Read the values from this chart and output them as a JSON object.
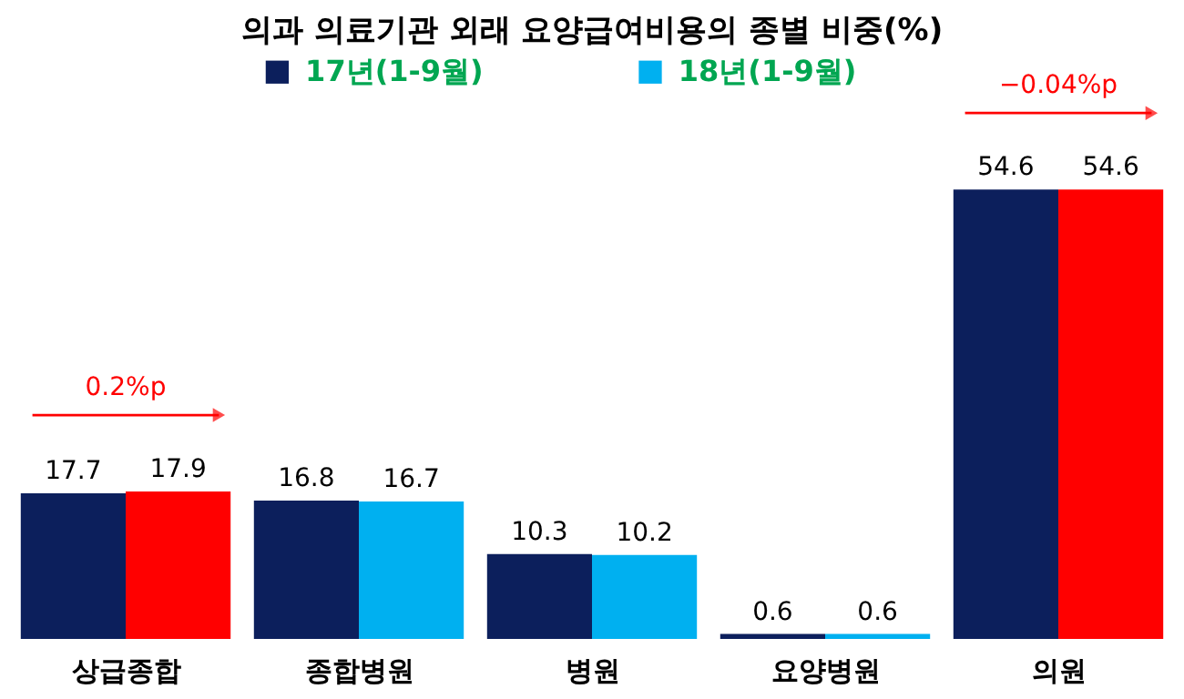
{
  "chart_data": {
    "type": "bar",
    "title": "의과 의료기관 외래 요양급여비용의 종별 비중(%)",
    "categories": [
      "상급종합",
      "종합병원",
      "병원",
      "요양병원",
      "의원"
    ],
    "series": [
      {
        "name": "17년(1-9월)",
        "color": "#0c1f5c",
        "values": [
          17.7,
          16.8,
          10.3,
          0.6,
          54.6
        ]
      },
      {
        "name": "18년(1-9월)",
        "color": "#00b0f0",
        "colors": [
          "#ff0000",
          "#00b0f0",
          "#00b0f0",
          "#00b0f0",
          "#ff0000"
        ],
        "values": [
          17.9,
          16.7,
          10.2,
          0.6,
          54.6
        ]
      }
    ],
    "data_labels": true,
    "legend": "top",
    "grid": false,
    "annotations": [
      "0.2%p",
      "−0.04%p"
    ]
  }
}
